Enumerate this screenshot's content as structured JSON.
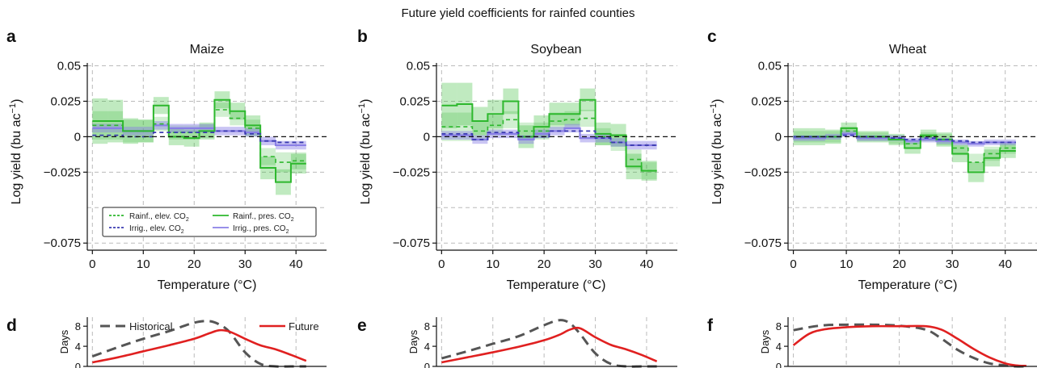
{
  "figure": {
    "title": "Future yield coefficients for rainfed counties"
  },
  "colors": {
    "rainfed": "#2db82d",
    "rainfed_band": "#2db82d",
    "irrigated": "#3a3ab0",
    "irrigated_pres": "#8a7fe6",
    "historical": "#555555",
    "future": "#e02020",
    "grid": "#bbbbbb"
  },
  "legend_top": {
    "entries": [
      {
        "label": "Rainf., elev. CO",
        "sub": "2",
        "style": "dash",
        "color": "#2db82d"
      },
      {
        "label": "Rainf., pres. CO",
        "sub": "2",
        "style": "solid",
        "color": "#2db82d"
      },
      {
        "label": "Irrig., elev. CO",
        "sub": "2",
        "style": "dash",
        "color": "#3a3ab0"
      },
      {
        "label": "Irrig., pres. CO",
        "sub": "2",
        "style": "solid",
        "color": "#8a7fe6"
      }
    ]
  },
  "legend_bottom": {
    "historical": "Historical",
    "future": "Future"
  },
  "chart_data": [
    {
      "panel": "a",
      "type": "line",
      "title": "Maize",
      "xlabel": "Temperature (°C)",
      "ylabel": "Log yield (bu ac",
      "ylabel_sup": "−1",
      "ylabel_end": ")",
      "xlim": [
        -1,
        46
      ],
      "ylim": [
        -0.08,
        0.052
      ],
      "xticks": [
        0,
        10,
        20,
        30,
        40
      ],
      "yticks": [
        0.05,
        0.025,
        0,
        -0.025,
        -0.075
      ],
      "ytick_labels": [
        "0.05",
        "0.025",
        "0",
        "−0.025",
        "−0.075"
      ],
      "ygrid": [
        0.05,
        0.025,
        -0.025,
        -0.05,
        -0.075
      ],
      "bin_edges": [
        0,
        3,
        6,
        9,
        12,
        15,
        18,
        21,
        24,
        27,
        30,
        33,
        36,
        39,
        42
      ],
      "series": [
        {
          "name": "Rainf., pres. CO2",
          "values": [
            0.011,
            0.011,
            0.004,
            0.004,
            0.022,
            0.0,
            -0.001,
            0.004,
            0.026,
            0.018,
            0.008,
            -0.022,
            -0.032,
            -0.019
          ],
          "band": [
            0.016,
            0.015,
            0.009,
            0.008,
            0.006,
            0.006,
            0.006,
            0.006,
            0.006,
            0.006,
            0.007,
            0.008,
            0.009,
            0.007
          ]
        },
        {
          "name": "Rainf., elev. CO2",
          "values": [
            0.008,
            0.008,
            0.004,
            0.004,
            0.009,
            0.003,
            0.003,
            0.004,
            0.019,
            0.013,
            0.006,
            -0.014,
            -0.018,
            -0.017
          ],
          "band": [
            0.01,
            0.01,
            0.008,
            0.008,
            0.005,
            0.005,
            0.005,
            0.005,
            0.005,
            0.005,
            0.006,
            0.006,
            0.007,
            0.006
          ]
        },
        {
          "name": "Irrig., elev. CO2",
          "values": [
            0.001,
            0.001,
            0.0,
            0.0,
            0.003,
            0.003,
            0.003,
            0.003,
            0.004,
            0.004,
            0.002,
            -0.003,
            -0.004,
            -0.004
          ],
          "band": [
            0,
            0,
            0,
            0,
            0,
            0,
            0,
            0,
            0,
            0,
            0,
            0,
            0,
            0
          ]
        },
        {
          "name": "Irrig., pres. CO2",
          "values": [
            0.006,
            0.006,
            0.004,
            0.004,
            0.008,
            0.006,
            0.006,
            0.006,
            0.004,
            0.004,
            0.003,
            -0.003,
            -0.006,
            -0.006
          ],
          "band": [
            0.003,
            0.003,
            0.003,
            0.003,
            0.003,
            0.003,
            0.003,
            0.003,
            0.003,
            0.003,
            0.003,
            0.003,
            0.003,
            0.003
          ]
        }
      ]
    },
    {
      "panel": "b",
      "type": "line",
      "title": "Soybean",
      "xlabel": "Temperature (°C)",
      "ylabel": "Log yield (bu ac",
      "ylabel_sup": "−1",
      "ylabel_end": ")",
      "xlim": [
        -1,
        46
      ],
      "ylim": [
        -0.08,
        0.052
      ],
      "xticks": [
        0,
        10,
        20,
        30,
        40
      ],
      "yticks": [
        0.05,
        0.025,
        0,
        -0.025,
        -0.075
      ],
      "ytick_labels": [
        "0.05",
        "0.025",
        "0",
        "−0.025",
        "−0.075"
      ],
      "ygrid": [
        0.05,
        0.025,
        -0.025,
        -0.05,
        -0.075
      ],
      "bin_edges": [
        0,
        3,
        6,
        9,
        12,
        15,
        18,
        21,
        24,
        27,
        30,
        33,
        36,
        39,
        42
      ],
      "series": [
        {
          "name": "Rainf., pres. CO2",
          "values": [
            0.022,
            0.023,
            0.011,
            0.016,
            0.025,
            0.0,
            0.007,
            0.016,
            0.016,
            0.026,
            0.002,
            0.001,
            -0.021,
            -0.024
          ],
          "band": [
            0.016,
            0.015,
            0.01,
            0.01,
            0.009,
            0.008,
            0.008,
            0.008,
            0.008,
            0.008,
            0.008,
            0.008,
            0.009,
            0.007
          ]
        },
        {
          "name": "Rainf., elev. CO2",
          "values": [
            0.007,
            0.007,
            0.004,
            0.008,
            0.012,
            0.004,
            0.004,
            0.011,
            0.012,
            0.013,
            0.0,
            -0.004,
            -0.016,
            -0.024
          ],
          "band": [
            0.01,
            0.01,
            0.007,
            0.007,
            0.006,
            0.006,
            0.006,
            0.006,
            0.006,
            0.006,
            0.006,
            0.006,
            0.007,
            0.006
          ]
        },
        {
          "name": "Irrig., elev. CO2",
          "values": [
            0.002,
            0.002,
            -0.002,
            0.003,
            0.003,
            0.0,
            0.0,
            0.004,
            0.004,
            0.004,
            -0.001,
            -0.004,
            -0.006,
            -0.006
          ],
          "band": [
            0,
            0,
            0,
            0,
            0,
            0,
            0,
            0,
            0,
            0,
            0,
            0,
            0,
            0
          ]
        },
        {
          "name": "Irrig., pres. CO2",
          "values": [
            0.001,
            0.001,
            -0.002,
            0.002,
            0.002,
            -0.002,
            0.002,
            0.004,
            0.006,
            -0.001,
            -0.001,
            -0.004,
            -0.006,
            -0.006
          ],
          "band": [
            0.003,
            0.003,
            0.003,
            0.003,
            0.003,
            0.003,
            0.003,
            0.003,
            0.003,
            0.003,
            0.003,
            0.003,
            0.003,
            0.003
          ]
        }
      ]
    },
    {
      "panel": "c",
      "type": "line",
      "title": "Wheat",
      "xlabel": "Temperature (°C)",
      "ylabel": "Log yield (bu ac",
      "ylabel_sup": "−1",
      "ylabel_end": ")",
      "xlim": [
        -1,
        46
      ],
      "ylim": [
        -0.08,
        0.052
      ],
      "xticks": [
        0,
        10,
        20,
        30,
        40
      ],
      "yticks": [
        0.05,
        0.025,
        0,
        -0.025,
        -0.075
      ],
      "ytick_labels": [
        "0.05",
        "0.025",
        "0",
        "−0.025",
        "−0.075"
      ],
      "ygrid": [
        0.05,
        0.025,
        -0.025,
        -0.05,
        -0.075
      ],
      "bin_edges": [
        0,
        3,
        6,
        9,
        12,
        15,
        18,
        21,
        24,
        27,
        30,
        33,
        36,
        39,
        42
      ],
      "series": [
        {
          "name": "Rainf., pres. CO2",
          "values": [
            0.0,
            0.0,
            0.0,
            0.006,
            0.0,
            0.0,
            -0.002,
            -0.008,
            0.001,
            -0.002,
            -0.012,
            -0.025,
            -0.015,
            -0.01
          ],
          "band": [
            0.006,
            0.006,
            0.005,
            0.004,
            0.004,
            0.004,
            0.004,
            0.004,
            0.004,
            0.005,
            0.006,
            0.007,
            0.006,
            0.005
          ]
        },
        {
          "name": "Rainf., elev. CO2",
          "values": [
            0.0,
            0.0,
            0.0,
            0.004,
            0.0,
            0.0,
            -0.002,
            -0.005,
            0.0,
            -0.002,
            -0.008,
            -0.018,
            -0.012,
            -0.008
          ],
          "band": [
            0.004,
            0.004,
            0.004,
            0.003,
            0.003,
            0.003,
            0.003,
            0.003,
            0.003,
            0.004,
            0.005,
            0.006,
            0.005,
            0.004
          ]
        },
        {
          "name": "Irrig., elev. CO2",
          "values": [
            0.0,
            0.0,
            0.0,
            0.001,
            0.0,
            0.0,
            -0.001,
            -0.002,
            -0.001,
            -0.002,
            -0.003,
            -0.004,
            -0.004,
            -0.004
          ],
          "band": [
            0,
            0,
            0,
            0,
            0,
            0,
            0,
            0,
            0,
            0,
            0,
            0,
            0,
            0
          ]
        },
        {
          "name": "Irrig., pres. CO2",
          "values": [
            -0.001,
            -0.001,
            0.0,
            0.002,
            -0.001,
            -0.001,
            -0.001,
            -0.003,
            -0.002,
            -0.003,
            -0.004,
            -0.005,
            -0.004,
            -0.004
          ],
          "band": [
            0.002,
            0.002,
            0.002,
            0.002,
            0.002,
            0.002,
            0.002,
            0.002,
            0.002,
            0.002,
            0.002,
            0.002,
            0.002,
            0.002
          ]
        }
      ]
    },
    {
      "panel": "d",
      "type": "line",
      "ylabel": "Days",
      "xlim": [
        -1,
        46
      ],
      "ylim": [
        0,
        9.8
      ],
      "yticks": [
        0,
        4,
        8
      ],
      "x": [
        0,
        5,
        10,
        15,
        20,
        23,
        25,
        27,
        30,
        33,
        36,
        39,
        42
      ],
      "series": [
        {
          "name": "Historical",
          "values": [
            2.0,
            3.8,
            5.5,
            7.0,
            8.7,
            9.0,
            8.3,
            6.8,
            2.8,
            0.5,
            0.0,
            0.0,
            0.0
          ]
        },
        {
          "name": "Future",
          "values": [
            0.8,
            1.8,
            3.0,
            4.2,
            5.5,
            6.6,
            7.2,
            6.9,
            5.5,
            4.2,
            3.4,
            2.3,
            1.1
          ]
        }
      ]
    },
    {
      "panel": "e",
      "type": "line",
      "ylabel": "Days",
      "xlim": [
        -1,
        46
      ],
      "ylim": [
        0,
        9.8
      ],
      "yticks": [
        0,
        4,
        8
      ],
      "x": [
        0,
        5,
        10,
        15,
        20,
        23,
        25,
        27,
        30,
        33,
        36,
        39,
        42
      ],
      "series": [
        {
          "name": "Historical",
          "values": [
            1.6,
            3.0,
            4.5,
            6.0,
            8.2,
            9.2,
            8.6,
            6.5,
            2.6,
            0.5,
            0.0,
            0.0,
            0.0
          ]
        },
        {
          "name": "Future",
          "values": [
            0.8,
            1.8,
            2.8,
            3.9,
            5.2,
            6.3,
            7.3,
            7.6,
            5.8,
            4.3,
            3.4,
            2.3,
            1.0
          ]
        }
      ]
    },
    {
      "panel": "f",
      "type": "line",
      "ylabel": "Days",
      "xlim": [
        -1,
        46
      ],
      "ylim": [
        0,
        9.8
      ],
      "yticks": [
        0,
        4,
        8
      ],
      "x": [
        0,
        3,
        6,
        10,
        15,
        20,
        25,
        28,
        31,
        34,
        37,
        40,
        42,
        44
      ],
      "series": [
        {
          "name": "Historical",
          "values": [
            7.2,
            7.8,
            8.2,
            8.3,
            8.3,
            8.1,
            7.3,
            5.5,
            3.3,
            1.7,
            0.6,
            0.2,
            0.0,
            0.0
          ]
        },
        {
          "name": "Future",
          "values": [
            4.2,
            6.5,
            7.4,
            7.8,
            8.0,
            8.0,
            8.0,
            7.3,
            5.5,
            3.5,
            1.8,
            0.6,
            0.2,
            0.1
          ]
        }
      ]
    }
  ]
}
